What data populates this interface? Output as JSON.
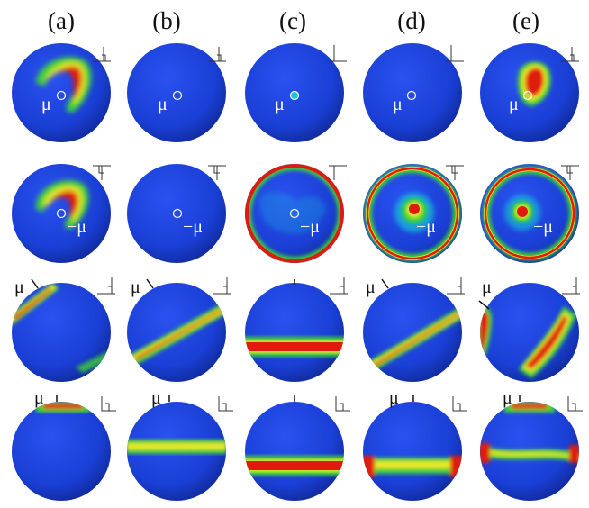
{
  "column_labels": [
    "(a)",
    "(b)",
    "(c)",
    "(d)",
    "(e)"
  ],
  "symbols": {
    "mu": "μ",
    "neg_mu": "−μ"
  },
  "colors": {
    "sphere_blue": "#1a3fd6",
    "cyan": "#12c7d6",
    "green": "#3fd23a",
    "yellow": "#e8e82a",
    "red": "#e01a0e"
  }
}
